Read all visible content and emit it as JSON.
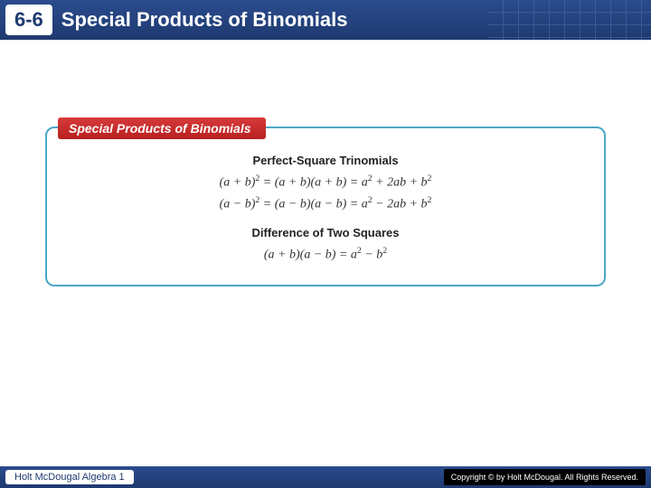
{
  "header": {
    "section_number": "6-6",
    "title": "Special Products of Binomials",
    "bg_gradient_top": "#2a4b8d",
    "bg_gradient_bottom": "#1e3a6f",
    "grid_color": "#4a6ba8"
  },
  "info_box": {
    "title": "Special Products of Binomials",
    "title_bg_top": "#d73a3a",
    "title_bg_bottom": "#b82020",
    "border_color": "#4aa8c6",
    "sections": [
      {
        "heading": "Perfect-Square Trinomials",
        "formulas": [
          "(a + b)² = (a + b)(a + b) = a² + 2ab + b²",
          "(a − b)² = (a − b)(a − b) = a² − 2ab + b²"
        ]
      },
      {
        "heading": "Difference of Two Squares",
        "formulas": [
          "(a + b)(a − b) = a² − b²"
        ]
      }
    ]
  },
  "footer": {
    "left": "Holt McDougal Algebra 1",
    "right": "Copyright © by Holt McDougal. All Rights Reserved."
  },
  "colors": {
    "page_bg": "#ffffff",
    "text": "#333333"
  }
}
